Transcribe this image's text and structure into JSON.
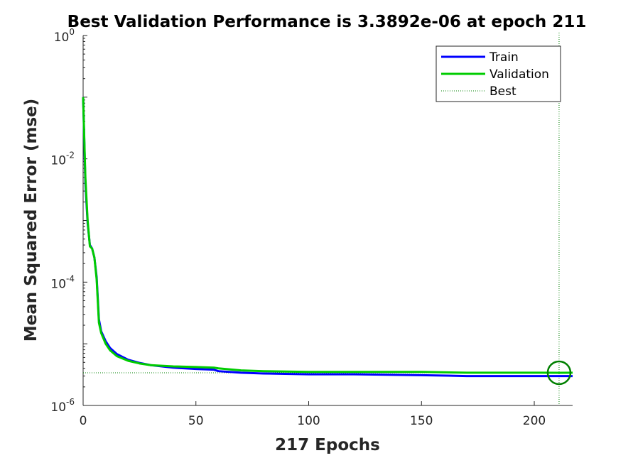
{
  "chart_data": {
    "type": "line",
    "title": "Best Validation Performance is 3.3892e-06 at epoch 211",
    "xlabel": "217 Epochs",
    "ylabel": "Mean Squared Error  (mse)",
    "xlim": [
      0,
      217
    ],
    "ylim": [
      1e-06,
      1
    ],
    "y_scale": "log",
    "x_ticks": [
      0,
      50,
      100,
      150,
      200
    ],
    "y_ticks": [
      {
        "base": "10",
        "exp": "0",
        "value": 1
      },
      {
        "base": "10",
        "exp": "-2",
        "value": 0.01
      },
      {
        "base": "10",
        "exp": "-4",
        "value": 0.0001
      },
      {
        "base": "10",
        "exp": "-6",
        "value": 1e-06
      }
    ],
    "grid": false,
    "legend_position": "top-right",
    "legend": [
      "Train",
      "Validation",
      "Best"
    ],
    "series": [
      {
        "name": "Train",
        "color": "#0000ff",
        "x": [
          0,
          1,
          2,
          3,
          4,
          5,
          6,
          7,
          8,
          10,
          12,
          15,
          20,
          25,
          30,
          40,
          50,
          58,
          60,
          70,
          80,
          100,
          120,
          150,
          170,
          200,
          211,
          217
        ],
        "y": [
          0.1,
          0.004,
          0.0009,
          0.0004,
          0.00035,
          0.00025,
          0.00012,
          2.5e-05,
          1.6e-05,
          1.1e-05,
          8.5e-06,
          6.8e-06,
          5.5e-06,
          4.9e-06,
          4.5e-06,
          4.1e-06,
          3.9e-06,
          3.8e-06,
          3.6e-06,
          3.4e-06,
          3.3e-06,
          3.2e-06,
          3.2e-06,
          3.1e-06,
          3e-06,
          3e-06,
          3e-06,
          3e-06
        ]
      },
      {
        "name": "Validation",
        "color": "#00cc00",
        "x": [
          0,
          1,
          2,
          3,
          4,
          5,
          6,
          7,
          8,
          10,
          12,
          15,
          20,
          25,
          30,
          40,
          50,
          58,
          60,
          70,
          80,
          100,
          120,
          150,
          170,
          200,
          211,
          217
        ],
        "y": [
          0.1,
          0.005,
          0.001,
          0.00038,
          0.00035,
          0.00025,
          0.00011,
          2.2e-05,
          1.5e-05,
          1e-05,
          7.8e-06,
          6.3e-06,
          5.3e-06,
          4.8e-06,
          4.5e-06,
          4.3e-06,
          4.2e-06,
          4.1e-06,
          4e-06,
          3.7e-06,
          3.6e-06,
          3.5e-06,
          3.5e-06,
          3.5e-06,
          3.4e-06,
          3.4e-06,
          3.3892e-06,
          3.4e-06
        ]
      }
    ],
    "best": {
      "label": "Best",
      "epoch": 211,
      "value": 3.3892e-06,
      "color": "#008000"
    }
  }
}
